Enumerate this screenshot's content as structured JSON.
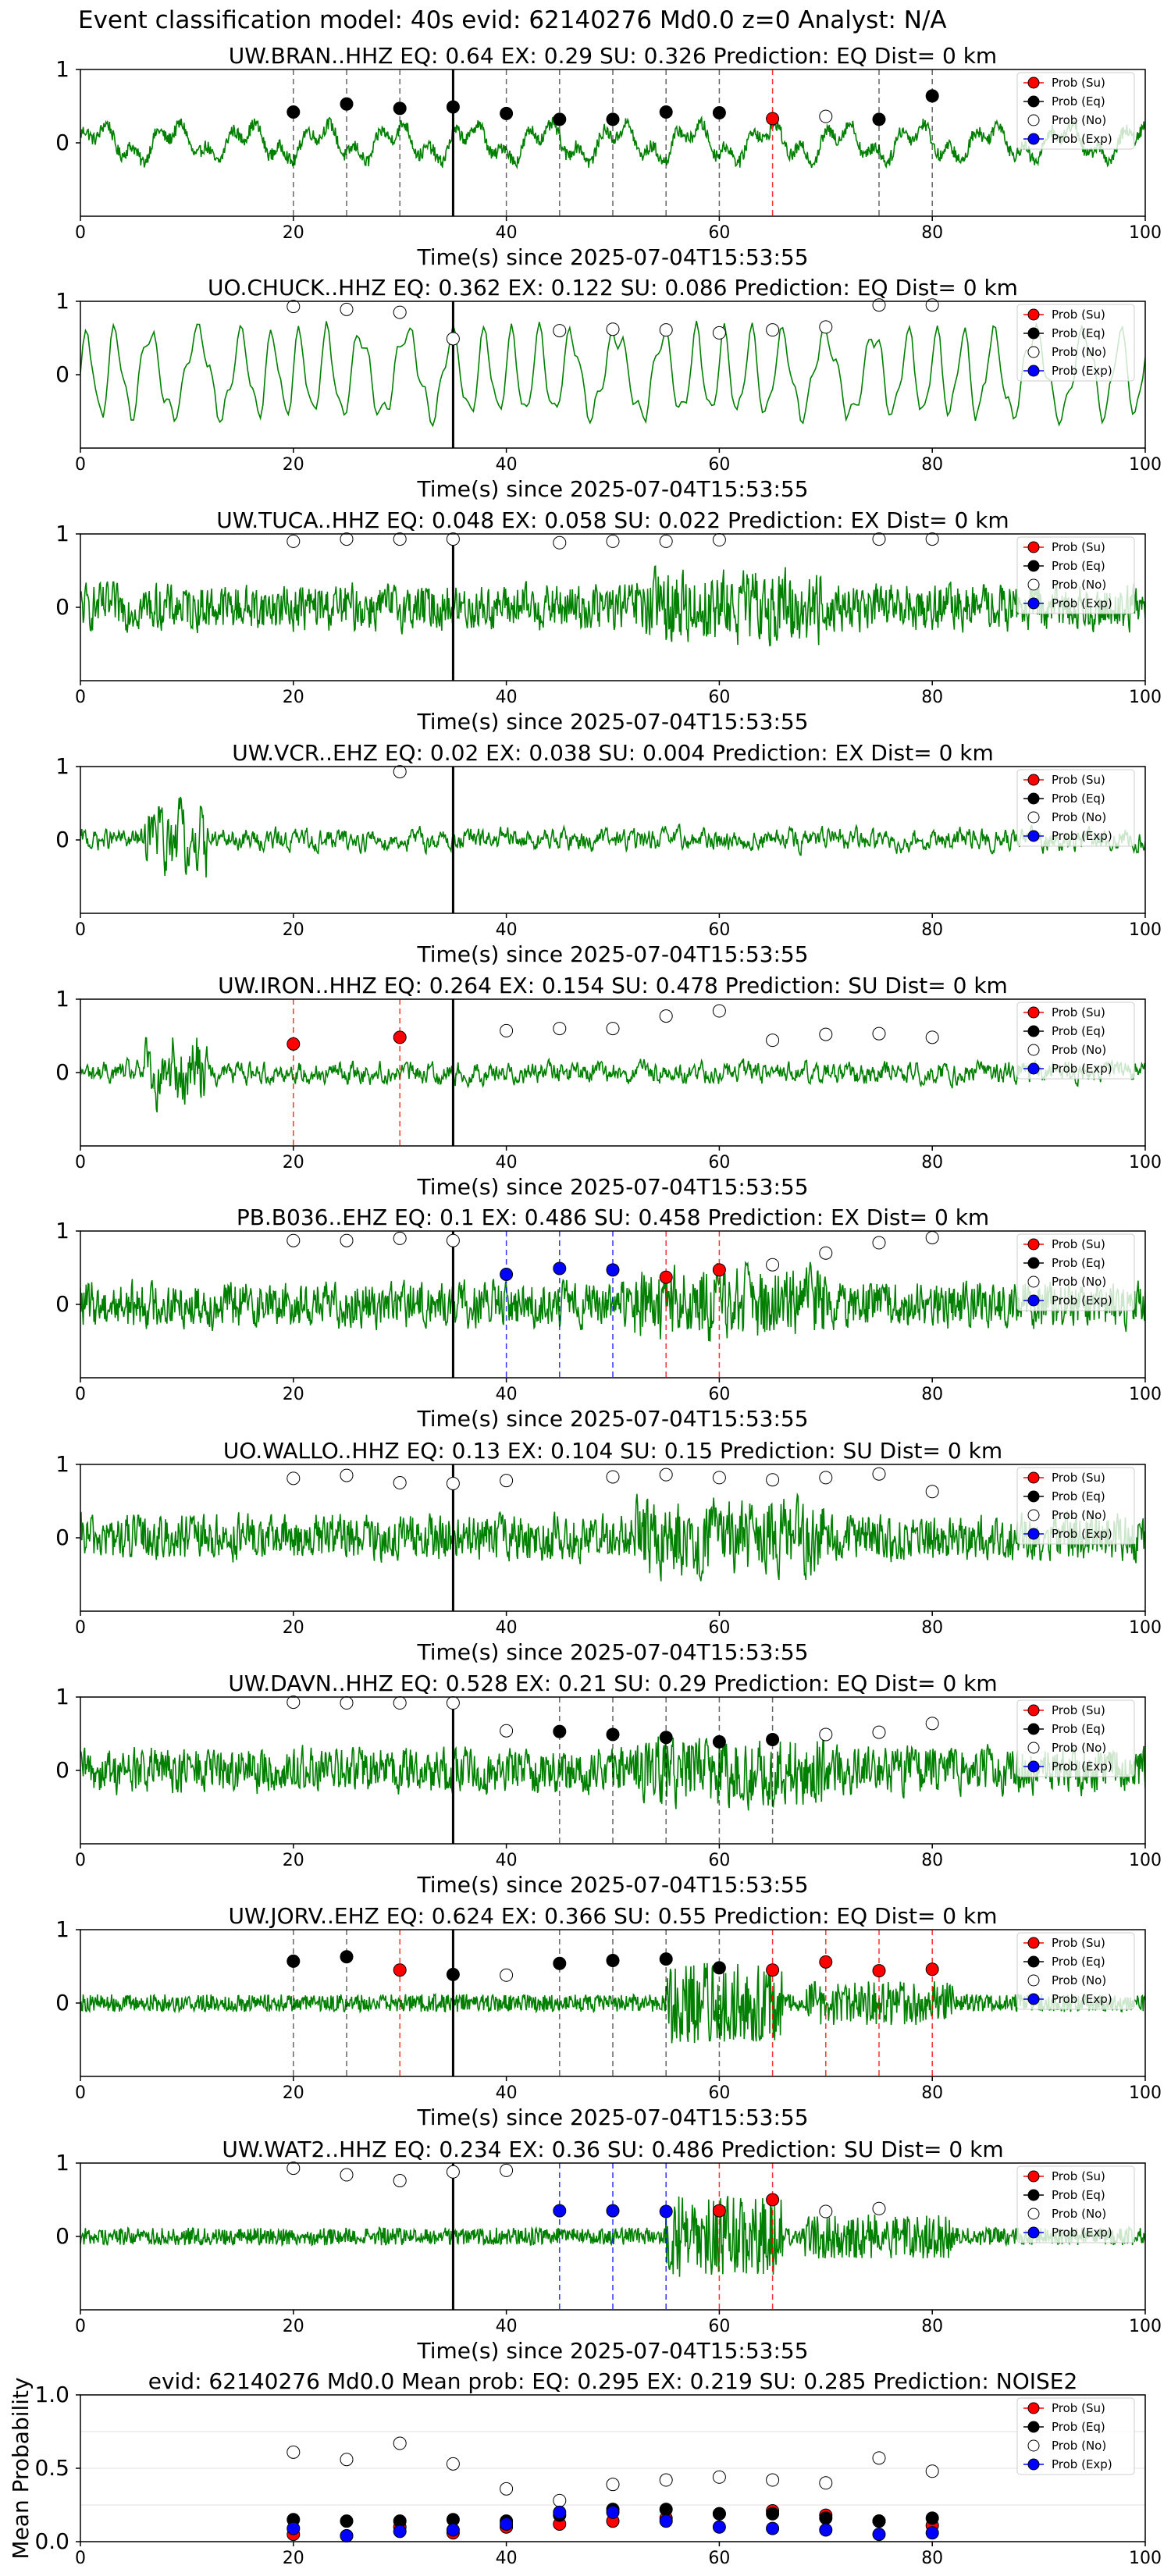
{
  "figure": {
    "title": "Event classification model: 40s evid: 62140276 Md0.0 z=0 Analyst: N/A"
  },
  "legend_labels": [
    "Prob (Su)",
    "Prob (Eq)",
    "Prob (No)",
    "Prob (Exp)"
  ],
  "colors": {
    "waveform": "#008000",
    "su": "#ff0000",
    "eq": "#000000",
    "no": "#ffffff",
    "exp": "#0000ff",
    "pick_line": "#000000"
  },
  "chart_data": [
    {
      "type": "line",
      "title": "UW.BRAN..HHZ   EQ: 0.64  EX: 0.29  SU: 0.326   Prediction: EQ    Dist= 0 km",
      "xlabel": "Time(s) since 2025-07-04T15:53:55",
      "xlim": [
        0,
        100
      ],
      "ylim": [
        -1,
        1
      ],
      "x_ticks": [
        0,
        20,
        40,
        60,
        80,
        100
      ],
      "y_ticks": [
        0,
        1
      ],
      "pick_time": 35,
      "waveform_style": "smooth",
      "points": [
        {
          "x": 20,
          "y": 0.42,
          "class": "eq"
        },
        {
          "x": 25,
          "y": 0.53,
          "class": "eq"
        },
        {
          "x": 30,
          "y": 0.47,
          "class": "eq"
        },
        {
          "x": 35,
          "y": 0.49,
          "class": "eq"
        },
        {
          "x": 40,
          "y": 0.4,
          "class": "eq"
        },
        {
          "x": 45,
          "y": 0.32,
          "class": "eq"
        },
        {
          "x": 50,
          "y": 0.32,
          "class": "eq"
        },
        {
          "x": 55,
          "y": 0.42,
          "class": "eq"
        },
        {
          "x": 60,
          "y": 0.41,
          "class": "eq"
        },
        {
          "x": 65,
          "y": 0.33,
          "class": "su"
        },
        {
          "x": 70,
          "y": 0.36,
          "class": "no"
        },
        {
          "x": 75,
          "y": 0.32,
          "class": "eq"
        },
        {
          "x": 80,
          "y": 0.64,
          "class": "eq"
        }
      ]
    },
    {
      "type": "line",
      "title": "UO.CHUCK..HHZ   EQ: 0.362  EX: 0.122  SU: 0.086   Prediction: EQ    Dist= 0 km",
      "xlabel": "Time(s) since 2025-07-04T15:53:55",
      "xlim": [
        0,
        100
      ],
      "ylim": [
        -1,
        1
      ],
      "x_ticks": [
        0,
        20,
        40,
        60,
        80,
        100
      ],
      "y_ticks": [
        0,
        1
      ],
      "pick_time": 35,
      "waveform_style": "oscillating",
      "points": [
        {
          "x": 20,
          "y": 0.93,
          "class": "no"
        },
        {
          "x": 25,
          "y": 0.89,
          "class": "no"
        },
        {
          "x": 30,
          "y": 0.85,
          "class": "no"
        },
        {
          "x": 35,
          "y": 0.49,
          "class": "no"
        },
        {
          "x": 45,
          "y": 0.6,
          "class": "no"
        },
        {
          "x": 50,
          "y": 0.62,
          "class": "no"
        },
        {
          "x": 55,
          "y": 0.61,
          "class": "no"
        },
        {
          "x": 60,
          "y": 0.57,
          "class": "no"
        },
        {
          "x": 65,
          "y": 0.61,
          "class": "no"
        },
        {
          "x": 70,
          "y": 0.65,
          "class": "no"
        },
        {
          "x": 75,
          "y": 0.95,
          "class": "no"
        },
        {
          "x": 80,
          "y": 0.95,
          "class": "no"
        }
      ]
    },
    {
      "type": "line",
      "title": "UW.TUCA..HHZ   EQ: 0.048  EX: 0.058  SU: 0.022   Prediction: EX    Dist= 0 km",
      "xlabel": "Time(s) since 2025-07-04T15:53:55",
      "xlim": [
        0,
        100
      ],
      "ylim": [
        -1,
        1
      ],
      "x_ticks": [
        0,
        20,
        40,
        60,
        80,
        100
      ],
      "y_ticks": [
        0,
        1
      ],
      "pick_time": 35,
      "waveform_style": "noisy",
      "points": [
        {
          "x": 20,
          "y": 0.9,
          "class": "no"
        },
        {
          "x": 25,
          "y": 0.93,
          "class": "no"
        },
        {
          "x": 30,
          "y": 0.93,
          "class": "no"
        },
        {
          "x": 35,
          "y": 0.93,
          "class": "no"
        },
        {
          "x": 45,
          "y": 0.88,
          "class": "no"
        },
        {
          "x": 50,
          "y": 0.9,
          "class": "no"
        },
        {
          "x": 55,
          "y": 0.9,
          "class": "no"
        },
        {
          "x": 60,
          "y": 0.92,
          "class": "no"
        },
        {
          "x": 75,
          "y": 0.93,
          "class": "no"
        },
        {
          "x": 80,
          "y": 0.93,
          "class": "no"
        }
      ]
    },
    {
      "type": "line",
      "title": "UW.VCR..EHZ   EQ: 0.02  EX: 0.038  SU: 0.004   Prediction: EX    Dist= 0 km",
      "xlabel": "Time(s) since 2025-07-04T15:53:55",
      "xlim": [
        0,
        100
      ],
      "ylim": [
        -1,
        1
      ],
      "x_ticks": [
        0,
        20,
        40,
        60,
        80,
        100
      ],
      "y_ticks": [
        0,
        1
      ],
      "pick_time": 35,
      "waveform_style": "quiet",
      "points": [
        {
          "x": 30,
          "y": 0.93,
          "class": "no"
        }
      ]
    },
    {
      "type": "line",
      "title": "UW.IRON..HHZ   EQ: 0.264  EX: 0.154  SU: 0.478   Prediction: SU    Dist= 0 km",
      "xlabel": "Time(s) since 2025-07-04T15:53:55",
      "xlim": [
        0,
        100
      ],
      "ylim": [
        -1,
        1
      ],
      "x_ticks": [
        0,
        20,
        40,
        60,
        80,
        100
      ],
      "y_ticks": [
        0,
        1
      ],
      "pick_time": 35,
      "waveform_style": "quiet",
      "points": [
        {
          "x": 20,
          "y": 0.39,
          "class": "su"
        },
        {
          "x": 30,
          "y": 0.48,
          "class": "su"
        },
        {
          "x": 40,
          "y": 0.57,
          "class": "no"
        },
        {
          "x": 45,
          "y": 0.6,
          "class": "no"
        },
        {
          "x": 50,
          "y": 0.6,
          "class": "no"
        },
        {
          "x": 55,
          "y": 0.77,
          "class": "no"
        },
        {
          "x": 60,
          "y": 0.84,
          "class": "no"
        },
        {
          "x": 65,
          "y": 0.44,
          "class": "no"
        },
        {
          "x": 70,
          "y": 0.52,
          "class": "no"
        },
        {
          "x": 75,
          "y": 0.53,
          "class": "no"
        },
        {
          "x": 80,
          "y": 0.48,
          "class": "no"
        }
      ]
    },
    {
      "type": "line",
      "title": "PB.B036..EHZ   EQ: 0.1  EX: 0.486  SU: 0.458   Prediction: EX    Dist= 0 km",
      "xlabel": "Time(s) since 2025-07-04T15:53:55",
      "xlim": [
        0,
        100
      ],
      "ylim": [
        -1,
        1
      ],
      "x_ticks": [
        0,
        20,
        40,
        60,
        80,
        100
      ],
      "y_ticks": [
        0,
        1
      ],
      "pick_time": 35,
      "waveform_style": "noisy",
      "points": [
        {
          "x": 20,
          "y": 0.87,
          "class": "no"
        },
        {
          "x": 25,
          "y": 0.87,
          "class": "no"
        },
        {
          "x": 30,
          "y": 0.9,
          "class": "no"
        },
        {
          "x": 35,
          "y": 0.87,
          "class": "no"
        },
        {
          "x": 40,
          "y": 0.41,
          "class": "exp"
        },
        {
          "x": 45,
          "y": 0.49,
          "class": "exp"
        },
        {
          "x": 50,
          "y": 0.47,
          "class": "exp"
        },
        {
          "x": 55,
          "y": 0.37,
          "class": "su"
        },
        {
          "x": 60,
          "y": 0.47,
          "class": "su"
        },
        {
          "x": 65,
          "y": 0.54,
          "class": "no"
        },
        {
          "x": 70,
          "y": 0.7,
          "class": "no"
        },
        {
          "x": 75,
          "y": 0.84,
          "class": "no"
        },
        {
          "x": 80,
          "y": 0.91,
          "class": "no"
        }
      ]
    },
    {
      "type": "line",
      "title": "UO.WALLO..HHZ   EQ: 0.13  EX: 0.104  SU: 0.15   Prediction: SU    Dist= 0 km",
      "xlabel": "Time(s) since 2025-07-04T15:53:55",
      "xlim": [
        0,
        100
      ],
      "ylim": [
        -1,
        1
      ],
      "x_ticks": [
        0,
        20,
        40,
        60,
        80,
        100
      ],
      "y_ticks": [
        0,
        1
      ],
      "pick_time": 35,
      "waveform_style": "noisy",
      "points": [
        {
          "x": 20,
          "y": 0.81,
          "class": "no"
        },
        {
          "x": 25,
          "y": 0.85,
          "class": "no"
        },
        {
          "x": 30,
          "y": 0.75,
          "class": "no"
        },
        {
          "x": 35,
          "y": 0.74,
          "class": "no"
        },
        {
          "x": 40,
          "y": 0.78,
          "class": "no"
        },
        {
          "x": 50,
          "y": 0.83,
          "class": "no"
        },
        {
          "x": 55,
          "y": 0.86,
          "class": "no"
        },
        {
          "x": 60,
          "y": 0.82,
          "class": "no"
        },
        {
          "x": 65,
          "y": 0.79,
          "class": "no"
        },
        {
          "x": 70,
          "y": 0.82,
          "class": "no"
        },
        {
          "x": 75,
          "y": 0.87,
          "class": "no"
        },
        {
          "x": 80,
          "y": 0.63,
          "class": "no"
        }
      ]
    },
    {
      "type": "line",
      "title": "UW.DAVN..HHZ   EQ: 0.528  EX: 0.21  SU: 0.29   Prediction: EQ    Dist= 0 km",
      "xlabel": "Time(s) since 2025-07-04T15:53:55",
      "xlim": [
        0,
        100
      ],
      "ylim": [
        -1,
        1
      ],
      "x_ticks": [
        0,
        20,
        40,
        60,
        80,
        100
      ],
      "y_ticks": [
        0,
        1
      ],
      "pick_time": 35,
      "waveform_style": "noisy",
      "points": [
        {
          "x": 20,
          "y": 0.93,
          "class": "no"
        },
        {
          "x": 25,
          "y": 0.92,
          "class": "no"
        },
        {
          "x": 30,
          "y": 0.92,
          "class": "no"
        },
        {
          "x": 35,
          "y": 0.92,
          "class": "no"
        },
        {
          "x": 40,
          "y": 0.54,
          "class": "no"
        },
        {
          "x": 45,
          "y": 0.53,
          "class": "eq"
        },
        {
          "x": 50,
          "y": 0.49,
          "class": "eq"
        },
        {
          "x": 55,
          "y": 0.45,
          "class": "eq"
        },
        {
          "x": 60,
          "y": 0.39,
          "class": "eq"
        },
        {
          "x": 65,
          "y": 0.42,
          "class": "eq"
        },
        {
          "x": 70,
          "y": 0.49,
          "class": "no"
        },
        {
          "x": 75,
          "y": 0.52,
          "class": "no"
        },
        {
          "x": 80,
          "y": 0.64,
          "class": "no"
        }
      ]
    },
    {
      "type": "line",
      "title": "UW.JORV..EHZ   EQ: 0.624  EX: 0.366  SU: 0.55   Prediction: EQ    Dist= 0 km",
      "xlabel": "Time(s) since 2025-07-04T15:53:55",
      "xlim": [
        0,
        100
      ],
      "ylim": [
        -1,
        1
      ],
      "x_ticks": [
        0,
        20,
        40,
        60,
        80,
        100
      ],
      "y_ticks": [
        0,
        1
      ],
      "pick_time": 35,
      "waveform_style": "bursty",
      "points": [
        {
          "x": 20,
          "y": 0.57,
          "class": "eq"
        },
        {
          "x": 25,
          "y": 0.63,
          "class": "eq"
        },
        {
          "x": 30,
          "y": 0.45,
          "class": "su"
        },
        {
          "x": 35,
          "y": 0.39,
          "class": "eq"
        },
        {
          "x": 40,
          "y": 0.38,
          "class": "no"
        },
        {
          "x": 45,
          "y": 0.54,
          "class": "eq"
        },
        {
          "x": 50,
          "y": 0.58,
          "class": "eq"
        },
        {
          "x": 55,
          "y": 0.6,
          "class": "eq"
        },
        {
          "x": 60,
          "y": 0.48,
          "class": "eq"
        },
        {
          "x": 65,
          "y": 0.45,
          "class": "su"
        },
        {
          "x": 70,
          "y": 0.56,
          "class": "su"
        },
        {
          "x": 75,
          "y": 0.44,
          "class": "su"
        },
        {
          "x": 80,
          "y": 0.46,
          "class": "su"
        }
      ]
    },
    {
      "type": "line",
      "title": "UW.WAT2..HHZ   EQ: 0.234  EX: 0.36  SU: 0.486   Prediction: SU    Dist= 0 km",
      "xlabel": "Time(s) since 2025-07-04T15:53:55",
      "xlim": [
        0,
        100
      ],
      "ylim": [
        -1,
        1
      ],
      "x_ticks": [
        0,
        20,
        40,
        60,
        80,
        100
      ],
      "y_ticks": [
        0,
        1
      ],
      "pick_time": 35,
      "waveform_style": "bursty",
      "points": [
        {
          "x": 20,
          "y": 0.93,
          "class": "no"
        },
        {
          "x": 25,
          "y": 0.84,
          "class": "no"
        },
        {
          "x": 30,
          "y": 0.76,
          "class": "no"
        },
        {
          "x": 35,
          "y": 0.88,
          "class": "no"
        },
        {
          "x": 40,
          "y": 0.9,
          "class": "no"
        },
        {
          "x": 45,
          "y": 0.35,
          "class": "exp"
        },
        {
          "x": 50,
          "y": 0.35,
          "class": "exp"
        },
        {
          "x": 55,
          "y": 0.34,
          "class": "exp"
        },
        {
          "x": 60,
          "y": 0.35,
          "class": "su"
        },
        {
          "x": 65,
          "y": 0.5,
          "class": "su"
        },
        {
          "x": 70,
          "y": 0.34,
          "class": "no"
        },
        {
          "x": 75,
          "y": 0.38,
          "class": "no"
        }
      ]
    },
    {
      "type": "scatter",
      "title": "evid: 62140276  Md0.0   Mean prob:   EQ: 0.295  EX: 0.219  SU: 0.285   Prediction: NOISE2",
      "ylabel": "Mean Probability",
      "xlim": [
        0,
        100
      ],
      "ylim": [
        0,
        1
      ],
      "x_ticks": [
        0,
        20,
        40,
        60,
        80,
        100
      ],
      "y_ticks": [
        0.0,
        0.5,
        1.0
      ],
      "grid": true,
      "series": [
        {
          "name": "Prob (Su)",
          "class": "su",
          "x": [
            20,
            25,
            30,
            35,
            40,
            45,
            50,
            55,
            60,
            65,
            70,
            75,
            80
          ],
          "y": [
            0.05,
            0.04,
            0.1,
            0.06,
            0.1,
            0.12,
            0.14,
            0.16,
            0.19,
            0.21,
            0.18,
            0.14,
            0.11
          ]
        },
        {
          "name": "Prob (Eq)",
          "class": "eq",
          "x": [
            20,
            25,
            30,
            35,
            40,
            45,
            50,
            55,
            60,
            65,
            70,
            75,
            80
          ],
          "y": [
            0.15,
            0.14,
            0.14,
            0.15,
            0.14,
            0.18,
            0.22,
            0.22,
            0.19,
            0.19,
            0.16,
            0.14,
            0.16
          ]
        },
        {
          "name": "Prob (No)",
          "class": "no",
          "x": [
            20,
            25,
            30,
            35,
            40,
            45,
            50,
            55,
            60,
            65,
            70,
            75,
            80
          ],
          "y": [
            0.61,
            0.56,
            0.67,
            0.53,
            0.36,
            0.28,
            0.39,
            0.42,
            0.44,
            0.42,
            0.4,
            0.57,
            0.48
          ]
        },
        {
          "name": "Prob (Exp)",
          "class": "exp",
          "x": [
            20,
            25,
            30,
            35,
            40,
            45,
            50,
            55,
            60,
            65,
            70,
            75,
            80
          ],
          "y": [
            0.09,
            0.04,
            0.07,
            0.08,
            0.12,
            0.2,
            0.2,
            0.14,
            0.1,
            0.09,
            0.08,
            0.05,
            0.06
          ]
        }
      ]
    }
  ]
}
